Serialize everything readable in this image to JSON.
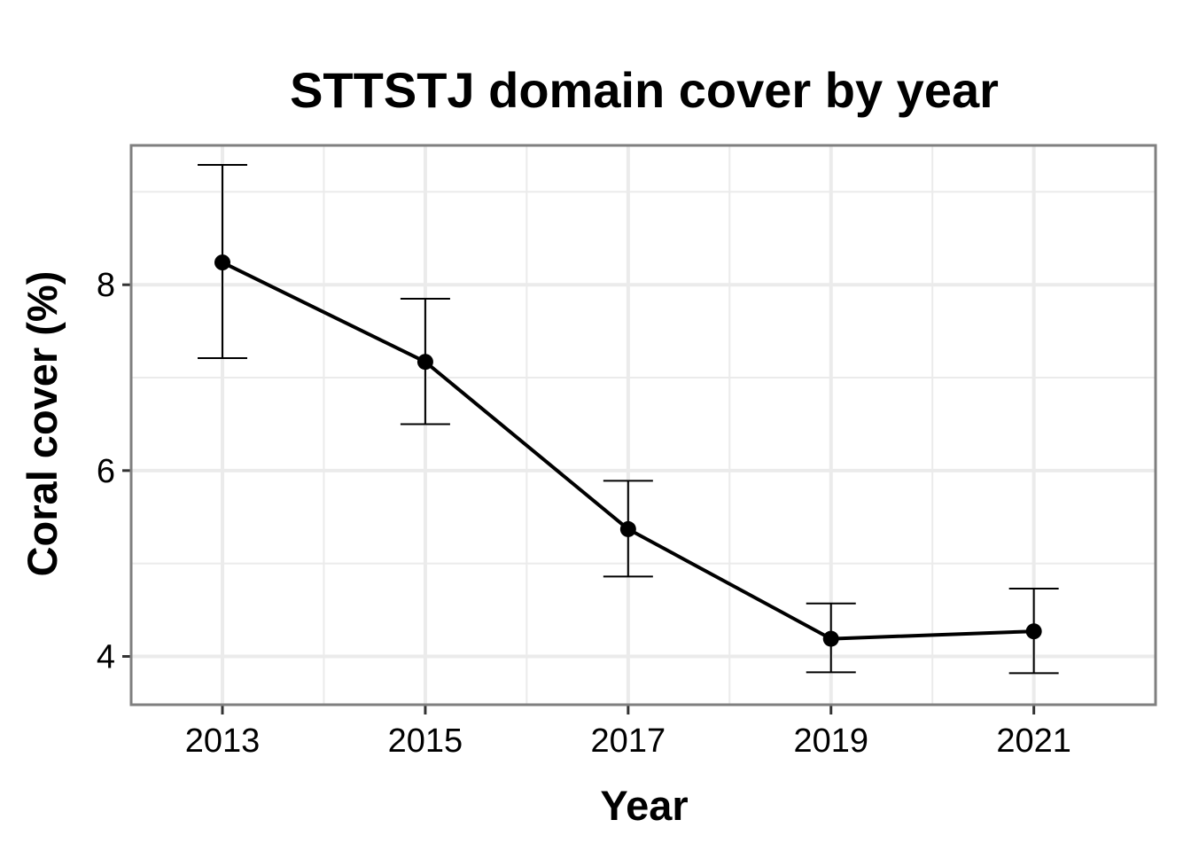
{
  "chart_data": {
    "type": "line",
    "title": "STTSTJ domain cover by year",
    "xlabel": "Year",
    "ylabel": "Coral cover (%)",
    "x": [
      2013,
      2015,
      2017,
      2019,
      2021
    ],
    "x_tick_labels": [
      "2013",
      "2015",
      "2017",
      "2019",
      "2021"
    ],
    "y_tick_labels": [
      "4",
      "6",
      "8"
    ],
    "y_ticks": [
      4,
      6,
      8
    ],
    "xlim": [
      2012.1,
      2022.2
    ],
    "ylim": [
      3.48,
      9.5
    ],
    "grid": true,
    "series": [
      {
        "values": [
          8.24,
          7.17,
          5.37,
          4.19,
          4.27
        ],
        "error_upper": [
          9.29,
          7.85,
          5.89,
          4.57,
          4.73
        ],
        "error_lower": [
          7.21,
          6.5,
          4.86,
          3.83,
          3.82
        ]
      }
    ],
    "colors": {
      "line": "#000000",
      "grid": "#ebebeb",
      "panel_border": "#7f7f7f"
    }
  }
}
